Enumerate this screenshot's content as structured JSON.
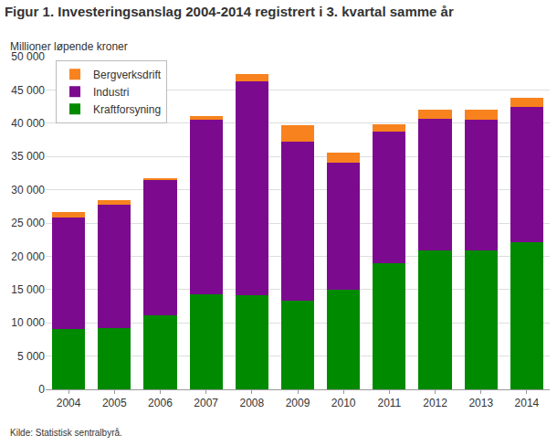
{
  "chart_data": {
    "type": "bar",
    "title": "Figur 1. Investeringsanslag 2004-2014 registrert i 3. kvartal samme år",
    "y_label": "Millioner løpende kroner",
    "annotations": [
      "Kilde: Statistisk sentralbyrå."
    ],
    "categories": [
      "2004",
      "2005",
      "2006",
      "2007",
      "2008",
      "2009",
      "2010",
      "2011",
      "2012",
      "2013",
      "2014"
    ],
    "series": [
      {
        "name": "Kraftforsyning",
        "color": "#008a00",
        "values": [
          9000,
          9200,
          11100,
          14300,
          14100,
          13300,
          15000,
          19000,
          20900,
          20900,
          22100
        ]
      },
      {
        "name": "Industri",
        "color": "#7c0a8f",
        "values": [
          16800,
          18500,
          20300,
          26200,
          32200,
          23900,
          19000,
          19800,
          19800,
          19600,
          20400
        ]
      },
      {
        "name": "Bergverksdrift",
        "color": "#f7821e",
        "values": [
          800,
          700,
          400,
          600,
          1100,
          2500,
          1600,
          1100,
          1400,
          1600,
          1300
        ]
      }
    ],
    "stacked": true,
    "legend": "top-left",
    "grid": true,
    "ylim": [
      0,
      50000
    ],
    "yticks": [
      0,
      {
        "value": 5000,
        "label": "5 000"
      },
      {
        "value": 10000,
        "label": "10 000"
      },
      {
        "value": 15000,
        "label": "15 000"
      },
      {
        "value": 20000,
        "label": "20 000"
      },
      {
        "value": 25000,
        "label": "25 000"
      },
      {
        "value": 30000,
        "label": "30 000"
      },
      {
        "value": 35000,
        "label": "35 000"
      },
      {
        "value": 40000,
        "label": "40 000"
      },
      {
        "value": 45000,
        "label": "45 000"
      },
      {
        "value": 50000,
        "label": "50 000"
      }
    ]
  }
}
